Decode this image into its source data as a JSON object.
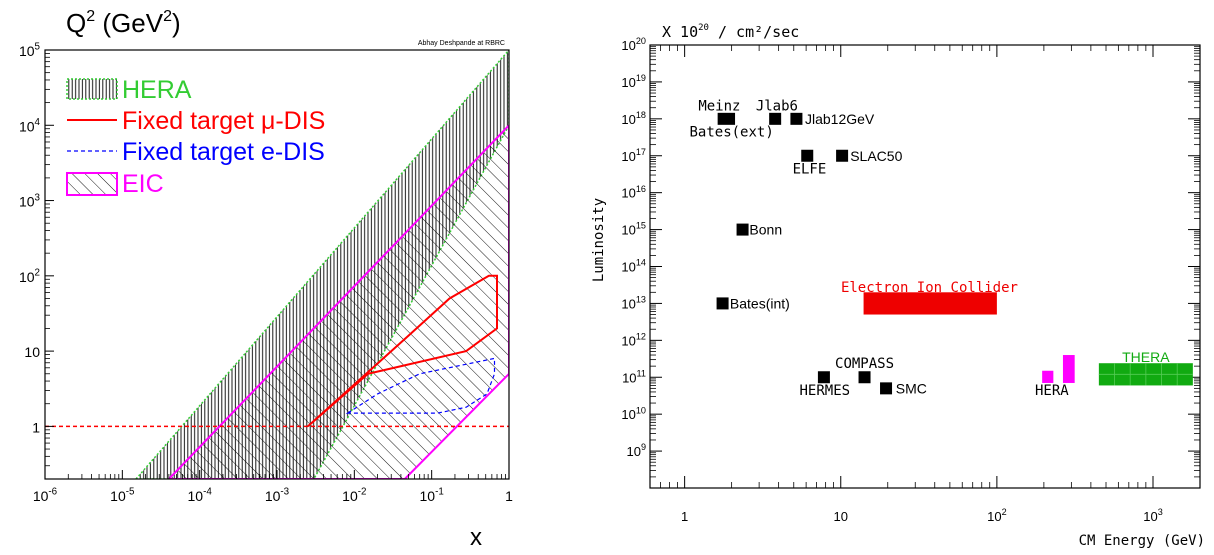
{
  "chart_data": [
    {
      "type": "area",
      "title": "Q²  (GeV²)",
      "title_main": "Q",
      "title_exp": "2",
      "title_unit": "(GeV",
      "title_unit_exp": "2",
      "title_close": ")",
      "credit": "Abhay Deshpande at RBRC",
      "xlabel": "x",
      "x_scale": "log",
      "y_scale": "log",
      "xlim": [
        1e-06,
        1
      ],
      "ylim": [
        0.2,
        100000
      ],
      "x_ticks": [
        {
          "v": 1e-06,
          "base": "10",
          "exp": "-6"
        },
        {
          "v": 1e-05,
          "base": "10",
          "exp": "-5"
        },
        {
          "v": 0.0001,
          "base": "10",
          "exp": "-4"
        },
        {
          "v": 0.001,
          "base": "10",
          "exp": "-3"
        },
        {
          "v": 0.01,
          "base": "10",
          "exp": "-2"
        },
        {
          "v": 0.1,
          "base": "10",
          "exp": "-1"
        },
        {
          "v": 1,
          "base": "1",
          "exp": ""
        }
      ],
      "y_ticks": [
        {
          "v": 1,
          "base": "1",
          "exp": ""
        },
        {
          "v": 10,
          "base": "10",
          "exp": ""
        },
        {
          "v": 100,
          "base": "10",
          "exp": "2"
        },
        {
          "v": 1000,
          "base": "10",
          "exp": "3"
        },
        {
          "v": 10000,
          "base": "10",
          "exp": "4"
        },
        {
          "v": 100000,
          "base": "10",
          "exp": "5"
        }
      ],
      "legend": [
        {
          "label": "HERA",
          "color": "#33cc33",
          "style": "vertical-hatch"
        },
        {
          "label": "Fixed target μ-DIS",
          "color": "#ff0000",
          "style": "solid-line"
        },
        {
          "label": "Fixed target e-DIS",
          "color": "#0000ff",
          "style": "dashed-line"
        },
        {
          "label": "EIC",
          "color": "#ff00ff",
          "style": "diagonal-hatch"
        }
      ],
      "series": [
        {
          "name": "HERA",
          "color": "#33cc33",
          "polygon": [
            [
              1.5e-05,
              0.2
            ],
            [
              1,
              100000
            ],
            [
              1,
              10000
            ],
            [
              0.003,
              0.2
            ]
          ]
        },
        {
          "name": "EIC",
          "color": "#ff00ff",
          "polygon": [
            [
              4e-05,
              0.2
            ],
            [
              1,
              10000
            ],
            [
              1,
              5
            ],
            [
              0.045,
              0.2
            ]
          ]
        },
        {
          "name": "Fixed target μ-DIS",
          "color": "#ff0000",
          "polygon": [
            [
              0.0025,
              1
            ],
            [
              0.015,
              5
            ],
            [
              0.28,
              10
            ],
            [
              0.7,
              20
            ],
            [
              0.7,
              100
            ],
            [
              0.55,
              100
            ],
            [
              0.17,
              50
            ],
            [
              0.05,
              16
            ],
            [
              0.0025,
              1
            ]
          ]
        },
        {
          "name": "Fixed target e-DIS",
          "color": "#0000ff",
          "polygon": [
            [
              0.0082,
              1.5
            ],
            [
              0.02,
              2.7
            ],
            [
              0.07,
              5
            ],
            [
              0.65,
              8
            ],
            [
              0.65,
              5
            ],
            [
              0.52,
              2.7
            ],
            [
              0.28,
              1.8
            ],
            [
              0.12,
              1.5
            ],
            [
              0.0082,
              1.5
            ]
          ]
        }
      ],
      "reference_line": {
        "y": 1,
        "color": "#ff0000",
        "style": "dashed"
      }
    },
    {
      "type": "scatter",
      "title": "X 10²⁰ / cm²/sec",
      "title_pre": "X 10",
      "title_exp": "20",
      "title_post": "/ cm²/sec",
      "xlabel": "CM Energy (GeV)",
      "ylabel": "Luminosity",
      "x_scale": "log",
      "y_scale": "log",
      "xlim": [
        0.6,
        2000
      ],
      "ylim": [
        100000000.0,
        1e+20
      ],
      "x_ticks": [
        {
          "v": 1,
          "base": "1",
          "exp": ""
        },
        {
          "v": 10,
          "base": "10",
          "exp": ""
        },
        {
          "v": 100,
          "base": "10",
          "exp": "2"
        },
        {
          "v": 1000,
          "base": "10",
          "exp": "3"
        }
      ],
      "y_ticks": [
        {
          "v": 1000000000.0,
          "base": "10",
          "exp": "9"
        },
        {
          "v": 10000000000.0,
          "base": "10",
          "exp": "10"
        },
        {
          "v": 100000000000.0,
          "base": "10",
          "exp": "11"
        },
        {
          "v": 1000000000000.0,
          "base": "10",
          "exp": "12"
        },
        {
          "v": 10000000000000.0,
          "base": "10",
          "exp": "13"
        },
        {
          "v": 100000000000000.0,
          "base": "10",
          "exp": "14"
        },
        {
          "v": 1000000000000000.0,
          "base": "10",
          "exp": "15"
        },
        {
          "v": 1e+16,
          "base": "10",
          "exp": "16"
        },
        {
          "v": 1e+17,
          "base": "10",
          "exp": "17"
        },
        {
          "v": 1e+18,
          "base": "10",
          "exp": "18"
        },
        {
          "v": 1e+19,
          "base": "10",
          "exp": "19"
        },
        {
          "v": 1e+20,
          "base": "10",
          "exp": "20"
        }
      ],
      "points": [
        {
          "x": 1.85,
          "y": 1e+18,
          "color": "#000000",
          "width_ratio": 1.45
        },
        {
          "x": 3.8,
          "y": 1e+18,
          "color": "#000000"
        },
        {
          "x": 5.2,
          "y": 1e+18,
          "color": "#000000"
        },
        {
          "x": 6.1,
          "y": 1e+17,
          "color": "#000000"
        },
        {
          "x": 10.2,
          "y": 1e+17,
          "color": "#000000"
        },
        {
          "x": 2.35,
          "y": 1000000000000000.0,
          "color": "#000000"
        },
        {
          "x": 1.75,
          "y": 10000000000000.0,
          "color": "#000000"
        },
        {
          "x": 7.8,
          "y": 100000000000.0,
          "color": "#000000"
        },
        {
          "x": 14.2,
          "y": 100000000000.0,
          "color": "#000000"
        },
        {
          "x": 19.5,
          "y": 50000000000.0,
          "color": "#000000"
        }
      ],
      "bands": [
        {
          "x": [
            14,
            100
          ],
          "y": [
            5000000000000.0,
            20000000000000.0
          ],
          "color": "#ee0000",
          "label": "Electron Ion Collider"
        },
        {
          "x": [
            195,
            230
          ],
          "y": [
            70000000000.0,
            150000000000.0
          ],
          "color": "#ff00ff",
          "label": ""
        },
        {
          "x": [
            265,
            315
          ],
          "y": [
            70000000000.0,
            400000000000.0
          ],
          "color": "#ff00ff",
          "label": ""
        },
        {
          "x": [
            450,
            1800
          ],
          "y": [
            60000000000.0,
            240000000000.0
          ],
          "color": "#11aa11",
          "label": "THERA"
        }
      ],
      "point_labels": [
        {
          "text": "Meinz",
          "x": 1.67,
          "y": 2.3e+18,
          "anchor": "middle",
          "font": "mono",
          "color": "#000000"
        },
        {
          "text": "Jlab6",
          "x": 3.9,
          "y": 2.3e+18,
          "anchor": "middle",
          "font": "mono",
          "color": "#000000"
        },
        {
          "text": "Jlab12GeV",
          "x": 5.9,
          "y": 1e+18,
          "anchor": "start",
          "font": "sans",
          "color": "#000000"
        },
        {
          "text": "Bates(ext)",
          "x": 2.0,
          "y": 4.5e+17,
          "anchor": "middle",
          "font": "mono",
          "color": "#000000"
        },
        {
          "text": "SLAC50",
          "x": 11.5,
          "y": 1e+17,
          "anchor": "start",
          "font": "sans",
          "color": "#000000"
        },
        {
          "text": "ELFE",
          "x": 6.3,
          "y": 4.5e+16,
          "anchor": "middle",
          "font": "mono",
          "color": "#000000"
        },
        {
          "text": "Bonn",
          "x": 2.6,
          "y": 1000000000000000.0,
          "anchor": "start",
          "font": "sans",
          "color": "#000000"
        },
        {
          "text": "Bates(int)",
          "x": 1.95,
          "y": 10000000000000.0,
          "anchor": "start",
          "font": "sans",
          "color": "#000000"
        },
        {
          "text": "COMPASS",
          "x": 14.2,
          "y": 240000000000.0,
          "anchor": "middle",
          "font": "mono",
          "color": "#000000"
        },
        {
          "text": "HERMES",
          "x": 7.9,
          "y": 45000000000.0,
          "anchor": "middle",
          "font": "mono",
          "color": "#000000"
        },
        {
          "text": "SMC",
          "x": 22.5,
          "y": 50000000000.0,
          "anchor": "start",
          "font": "sans",
          "color": "#000000"
        },
        {
          "text": "HERA",
          "x": 225,
          "y": 45000000000.0,
          "anchor": "middle",
          "font": "mono",
          "color": "#000000"
        },
        {
          "text": "Electron Ion Collider",
          "x": 37,
          "y": 28000000000000.0,
          "anchor": "middle",
          "font": "mono",
          "color": "#ee0000"
        },
        {
          "text": "THERA",
          "x": 900,
          "y": 350000000000.0,
          "anchor": "middle",
          "font": "sans",
          "color": "#11aa11"
        }
      ]
    }
  ]
}
